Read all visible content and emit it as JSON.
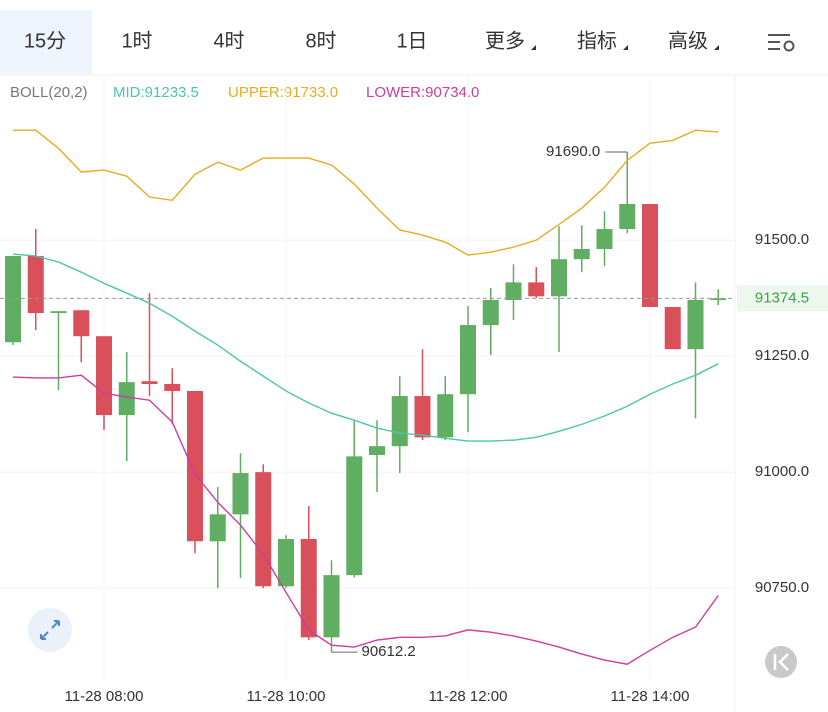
{
  "tabs": [
    "15分",
    "1时",
    "4时",
    "8时",
    "1日",
    "更多",
    "指标",
    "高级"
  ],
  "chart_data": {
    "type": "candlestick",
    "indicator": "BOLL(20,2)",
    "categories": [
      null,
      null,
      null,
      null,
      "11-28 08:00",
      null,
      null,
      null,
      null,
      null,
      null,
      null,
      "11-28 10:00",
      null,
      null,
      null,
      null,
      null,
      null,
      null,
      "11-28 12:00",
      null,
      null,
      null,
      null,
      null,
      null,
      null,
      "11-28 14:00",
      null,
      null,
      null
    ],
    "series": [
      {
        "up_color": "#5fae62",
        "down_color": "#d9505a",
        "open": [
          91280,
          91466,
          91343,
          91349,
          91293,
          91123,
          91196,
          91190,
          91175,
          90851,
          90909,
          91000,
          90754,
          90856,
          90644,
          90778,
          91037,
          91056,
          91164,
          91075,
          91168,
          91317,
          91371,
          91409,
          91379,
          91459,
          91481,
          91524,
          91578,
          91356,
          91265,
          91371
        ],
        "high": [
          91466,
          91524,
          91347,
          91349,
          91293,
          91259,
          91386,
          91224,
          91175,
          90968,
          91041,
          91017,
          90864,
          90927,
          90810,
          91112,
          91112,
          91207,
          91265,
          91207,
          91358,
          91397,
          91448,
          91442,
          91530,
          91532,
          91562,
          91690,
          91578,
          91356,
          91409,
          91394
        ],
        "low": [
          91274,
          91306,
          91177,
          91237,
          91091,
          91024,
          91164,
          91103,
          90825,
          90750,
          90772,
          90750,
          90750,
          90638,
          90612.2,
          90773,
          90957,
          90998,
          91069,
          91069,
          91086,
          91252,
          91328,
          91375,
          91259,
          91431,
          91444,
          91515,
          91356,
          91265,
          91116,
          91360
        ],
        "close": [
          91466,
          91343,
          91347,
          91293,
          91123,
          91194,
          91190,
          91175,
          90851,
          90909,
          90998,
          90754,
          90856,
          90644,
          90778,
          91034,
          91056,
          91164,
          91075,
          91168,
          91317,
          91371,
          91409,
          91379,
          91459,
          91481,
          91524,
          91578,
          91356,
          91265,
          91371,
          91374.5
        ]
      }
    ],
    "lines": [
      {
        "name": "MID:91233.5",
        "color": "#4cc6a6",
        "values": [
          91470,
          91466,
          91453,
          91431,
          91407,
          91386,
          91364,
          91336,
          91304,
          91274,
          91239,
          91207,
          91175,
          91149,
          91127,
          91112,
          91095,
          91084,
          91080,
          91073,
          91067,
          91067,
          91069,
          91075,
          91088,
          91103,
          91121,
          91142,
          91168,
          91190,
          91209,
          91233.5
        ]
      },
      {
        "name": "UPPER:91733.0",
        "color": "#e6ac22",
        "values": [
          91737,
          91737,
          91698,
          91647,
          91651,
          91638,
          91593,
          91586,
          91642,
          91668,
          91651,
          91677,
          91677,
          91677,
          91662,
          91621,
          91569,
          91522,
          91511,
          91496,
          91468,
          91474,
          91485,
          91500,
          91534,
          91569,
          91614,
          91672,
          91709,
          91715,
          91737,
          91733
        ]
      },
      {
        "name": "LOWER:90734.0",
        "color": "#cc3d9e",
        "values": [
          91205,
          91203,
          91203,
          91209,
          91170,
          91162,
          91155,
          91108,
          90996,
          90935,
          90886,
          90823,
          90741,
          90660,
          90627,
          90623,
          90638,
          90644,
          90644,
          90647,
          90660,
          90655,
          90647,
          90636,
          90623,
          90608,
          90595,
          90586,
          90616,
          90644,
          90666,
          90734
        ]
      }
    ],
    "annotations": [
      {
        "label": "91690.0",
        "value": 91690
      },
      {
        "label": "90612.2",
        "value": 90612.2
      }
    ],
    "ylim": [
      90552,
      91856
    ],
    "yticks": [
      {
        "value": 90750,
        "label": "90750.0"
      },
      {
        "value": 91000,
        "label": "91000.0"
      },
      {
        "value": 91250,
        "label": "91250.0"
      },
      {
        "value": 91500,
        "label": "91500.0"
      }
    ],
    "grid": true
  }
}
